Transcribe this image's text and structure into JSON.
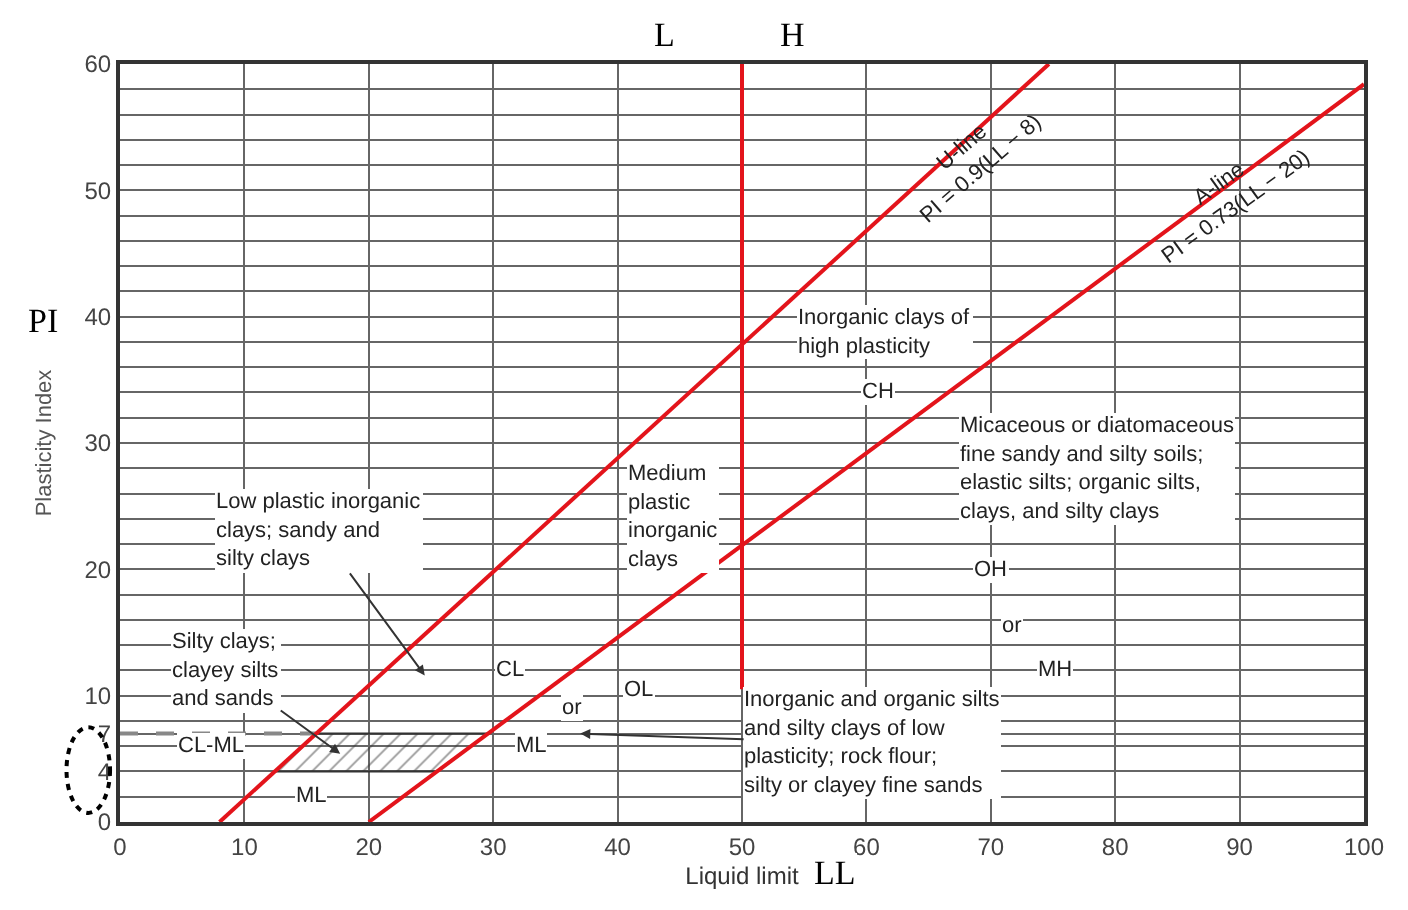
{
  "chart_data": {
    "type": "line",
    "xlabel": "Liquid limit",
    "ylabel": "Plasticity Index",
    "series": [
      {
        "type": "area",
        "color": "#333333",
        "x": [
          12.44,
          25.48,
          29.59,
          15.78,
          12.44
        ],
        "values": [
          4,
          4,
          7,
          7,
          4
        ]
      },
      {
        "type": "line",
        "color": "#888888",
        "line_style": "dashed",
        "x": [
          0,
          15.78
        ],
        "values": [
          7,
          7
        ]
      },
      {
        "color": "#e3141b",
        "x": [
          8,
          74.67
        ],
        "values": [
          0,
          60
        ]
      },
      {
        "color": "#e3141b",
        "x": [
          20,
          100
        ],
        "values": [
          0,
          58.4
        ]
      },
      {
        "color": "#e3141b",
        "x": [
          50,
          50
        ],
        "values": [
          10.5,
          60
        ]
      }
    ],
    "xlim": [
      0,
      100
    ],
    "ylim": [
      0,
      60
    ],
    "xticks": [
      0,
      10,
      20,
      30,
      40,
      50,
      60,
      70,
      80,
      90,
      100
    ],
    "yticks": [
      0,
      {
        "value": 2,
        "label": null
      },
      4,
      {
        "value": 6,
        "label": null
      },
      7,
      {
        "value": 8,
        "label": null
      },
      10,
      {
        "value": 12,
        "label": null
      },
      {
        "value": 14,
        "label": null
      },
      {
        "value": 16,
        "label": null
      },
      {
        "value": 18,
        "label": null
      },
      20,
      {
        "value": 22,
        "label": null
      },
      {
        "value": 24,
        "label": null
      },
      {
        "value": 26,
        "label": null
      },
      {
        "value": 28,
        "label": null
      },
      30,
      {
        "value": 32,
        "label": null
      },
      {
        "value": 34,
        "label": null
      },
      {
        "value": 36,
        "label": null
      },
      {
        "value": 38,
        "label": null
      },
      40,
      {
        "value": 42,
        "label": null
      },
      {
        "value": 44,
        "label": null
      },
      {
        "value": 46,
        "label": null
      },
      {
        "value": 48,
        "label": null
      },
      50,
      {
        "value": 52,
        "label": null
      },
      {
        "value": 54,
        "label": null
      },
      {
        "value": 56,
        "label": null
      },
      {
        "value": 58,
        "label": null
      },
      60
    ],
    "grid": true,
    "annotations": [
      "L",
      "H",
      "PI",
      "LL",
      "U-line\nPI = 0.9(LL − 8)",
      {
        "text": "A-line\nPI = 0.73(LL − 20)",
        "x": 89,
        "y": 49.5
      },
      "Low plastic inorganic\nclays; sandy and\nsilty clays",
      "Silty clays;\nclayey silts\nand sands",
      {
        "text": "CL-ML",
        "x": 7.3,
        "y": 6
      },
      {
        "text": "ML",
        "x": 15.3,
        "y": 2
      },
      {
        "text": "CL",
        "x": 31.4,
        "y": 12
      },
      {
        "text": "or",
        "x": 36.4,
        "y": 9
      },
      {
        "text": "ML",
        "x": 33,
        "y": 6
      },
      {
        "text": "OL",
        "x": 41.7,
        "y": 10.5
      },
      "Medium\nplastic\ninorganic\nclays",
      "Inorganic and organic silts\nand silty clays of low\nplasticity; rock flour;\nsilty or clayey fine sands",
      "Inorganic clays of\nhigh plasticity",
      {
        "text": "CH",
        "x": 61,
        "y": 34
      },
      "Micaceous or diatomaceous\nfine sandy and silty soils;\nelastic silts; organic silts,\nclays, and silty clays",
      {
        "text": "OH",
        "x": 70,
        "y": 20
      },
      {
        "text": "or",
        "x": 71.7,
        "y": 15.5
      },
      {
        "text": "MH",
        "x": 75.2,
        "y": 12
      }
    ]
  }
}
